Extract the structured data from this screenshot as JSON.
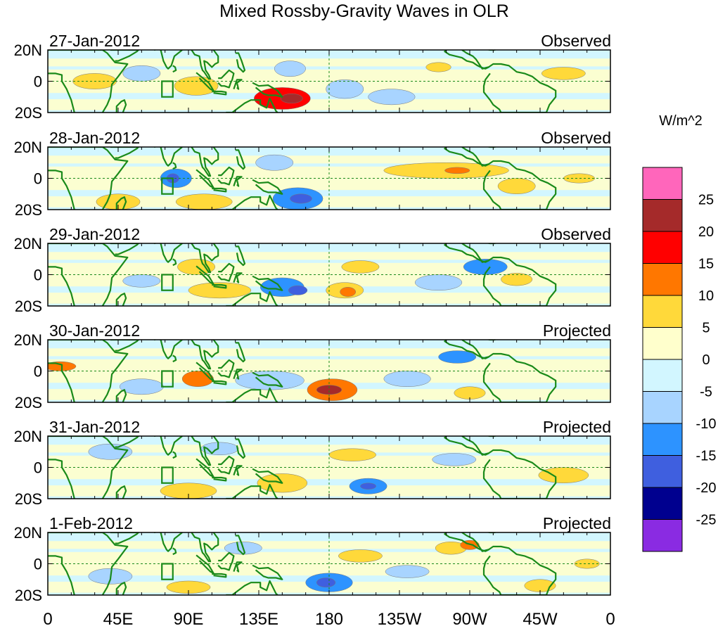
{
  "title": "Mixed Rossby-Gravity Waves in OLR",
  "units": "W/m^2",
  "lat_labels": [
    "20N",
    "0",
    "20S"
  ],
  "lon_labels": [
    "0",
    "45E",
    "90E",
    "135E",
    "180",
    "135W",
    "90W",
    "45W",
    "0"
  ],
  "panels": [
    {
      "date": "27-Jan-2012",
      "status": "Observed"
    },
    {
      "date": "28-Jan-2012",
      "status": "Observed"
    },
    {
      "date": "29-Jan-2012",
      "status": "Observed"
    },
    {
      "date": "30-Jan-2012",
      "status": "Projected"
    },
    {
      "date": "31-Jan-2012",
      "status": "Projected"
    },
    {
      "date": "1-Feb-2012",
      "status": "Projected"
    }
  ],
  "colorbar": {
    "labels": [
      "25",
      "20",
      "15",
      "10",
      "5",
      "0",
      "-5",
      "-10",
      "-15",
      "-20",
      "-25"
    ],
    "colors": [
      "#ff66bb",
      "#a52a2a",
      "#ff0000",
      "#ff7700",
      "#ffd93a",
      "#ffffcc",
      "#d2f6ff",
      "#a8d4ff",
      "#2d93ff",
      "#3f5fdf",
      "#00008f",
      "#8a2be2"
    ]
  },
  "blobs": [
    [
      {
        "lon": 30,
        "lat": 0,
        "rx": 14,
        "ry": 5,
        "v": 5
      },
      {
        "lon": 150,
        "lat": -11,
        "rx": 18,
        "ry": 7,
        "v": 15
      },
      {
        "lon": 156,
        "lat": -11,
        "rx": 7,
        "ry": 3,
        "v": 20
      },
      {
        "lon": 190,
        "lat": -5,
        "rx": 12,
        "ry": 6,
        "v": -5
      },
      {
        "lon": 155,
        "lat": 8,
        "rx": 10,
        "ry": 5,
        "v": -5
      },
      {
        "lon": 95,
        "lat": -3,
        "rx": 14,
        "ry": 6,
        "v": 5
      },
      {
        "lon": 250,
        "lat": 9,
        "rx": 8,
        "ry": 3,
        "v": 5
      },
      {
        "lon": 330,
        "lat": 5,
        "rx": 14,
        "ry": 4,
        "v": 5
      },
      {
        "lon": 60,
        "lat": 5,
        "rx": 12,
        "ry": 5,
        "v": -5
      },
      {
        "lon": 220,
        "lat": -10,
        "rx": 15,
        "ry": 5,
        "v": -5
      }
    ],
    [
      {
        "lon": 160,
        "lat": -13,
        "rx": 16,
        "ry": 7,
        "v": -10
      },
      {
        "lon": 162,
        "lat": -13,
        "rx": 7,
        "ry": 3,
        "v": -15
      },
      {
        "lon": 255,
        "lat": 5,
        "rx": 40,
        "ry": 5,
        "v": 5
      },
      {
        "lon": 262,
        "lat": 5,
        "rx": 8,
        "ry": 2,
        "v": 10
      },
      {
        "lon": 82,
        "lat": 0,
        "rx": 10,
        "ry": 6,
        "v": -10
      },
      {
        "lon": 80,
        "lat": 0,
        "rx": 4,
        "ry": 3,
        "v": -15
      },
      {
        "lon": 45,
        "lat": -15,
        "rx": 14,
        "ry": 5,
        "v": 5
      },
      {
        "lon": 100,
        "lat": -15,
        "rx": 18,
        "ry": 5,
        "v": 5
      },
      {
        "lon": 145,
        "lat": 10,
        "rx": 12,
        "ry": 5,
        "v": -5
      },
      {
        "lon": 300,
        "lat": -5,
        "rx": 12,
        "ry": 5,
        "v": 5
      },
      {
        "lon": 340,
        "lat": 0,
        "rx": 10,
        "ry": 3,
        "v": 5
      }
    ],
    [
      {
        "lon": 150,
        "lat": -8,
        "rx": 14,
        "ry": 6,
        "v": -10
      },
      {
        "lon": 160,
        "lat": -10,
        "rx": 6,
        "ry": 3,
        "v": -15
      },
      {
        "lon": 190,
        "lat": -10,
        "rx": 12,
        "ry": 5,
        "v": 5
      },
      {
        "lon": 192,
        "lat": -11,
        "rx": 5,
        "ry": 3,
        "v": 10
      },
      {
        "lon": 280,
        "lat": 5,
        "rx": 14,
        "ry": 5,
        "v": -10
      },
      {
        "lon": 110,
        "lat": -10,
        "rx": 20,
        "ry": 5,
        "v": 5
      },
      {
        "lon": 95,
        "lat": 5,
        "rx": 12,
        "ry": 5,
        "v": 5
      },
      {
        "lon": 200,
        "lat": 5,
        "rx": 12,
        "ry": 4,
        "v": 5
      },
      {
        "lon": 60,
        "lat": -4,
        "rx": 12,
        "ry": 4,
        "v": -5
      },
      {
        "lon": 250,
        "lat": -5,
        "rx": 15,
        "ry": 5,
        "v": -5
      },
      {
        "lon": 300,
        "lat": -3,
        "rx": 10,
        "ry": 4,
        "v": 5
      }
    ],
    [
      {
        "lon": 182,
        "lat": -12,
        "rx": 16,
        "ry": 7,
        "v": 10
      },
      {
        "lon": 180,
        "lat": -12,
        "rx": 8,
        "ry": 3,
        "v": 20
      },
      {
        "lon": 142,
        "lat": -6,
        "rx": 22,
        "ry": 6,
        "v": -5
      },
      {
        "lon": 262,
        "lat": 9,
        "rx": 12,
        "ry": 4,
        "v": -10
      },
      {
        "lon": 96,
        "lat": -5,
        "rx": 10,
        "ry": 5,
        "v": 10
      },
      {
        "lon": 8,
        "lat": 3,
        "rx": 10,
        "ry": 3,
        "v": 10
      },
      {
        "lon": 270,
        "lat": -14,
        "rx": 10,
        "ry": 4,
        "v": 5
      },
      {
        "lon": 230,
        "lat": -5,
        "rx": 15,
        "ry": 5,
        "v": -5
      },
      {
        "lon": 60,
        "lat": -10,
        "rx": 14,
        "ry": 5,
        "v": -5
      }
    ],
    [
      {
        "lon": 205,
        "lat": -12,
        "rx": 12,
        "ry": 5,
        "v": -10
      },
      {
        "lon": 205,
        "lat": -12,
        "rx": 5,
        "ry": 2,
        "v": -15
      },
      {
        "lon": 150,
        "lat": -10,
        "rx": 16,
        "ry": 6,
        "v": 5
      },
      {
        "lon": 195,
        "lat": 8,
        "rx": 15,
        "ry": 4,
        "v": 5
      },
      {
        "lon": 90,
        "lat": -15,
        "rx": 18,
        "ry": 5,
        "v": 5
      },
      {
        "lon": 260,
        "lat": 5,
        "rx": 14,
        "ry": 4,
        "v": -5
      },
      {
        "lon": 40,
        "lat": 10,
        "rx": 14,
        "ry": 5,
        "v": -5
      },
      {
        "lon": 330,
        "lat": -5,
        "rx": 16,
        "ry": 5,
        "v": 5
      },
      {
        "lon": 110,
        "lat": 12,
        "rx": 12,
        "ry": 4,
        "v": -5
      }
    ],
    [
      {
        "lon": 180,
        "lat": -12,
        "rx": 15,
        "ry": 6,
        "v": -10
      },
      {
        "lon": 178,
        "lat": -12,
        "rx": 6,
        "ry": 3,
        "v": -15
      },
      {
        "lon": 258,
        "lat": 10,
        "rx": 10,
        "ry": 4,
        "v": 5
      },
      {
        "lon": 270,
        "lat": 12,
        "rx": 6,
        "ry": 3,
        "v": 10
      },
      {
        "lon": 90,
        "lat": -15,
        "rx": 14,
        "ry": 4,
        "v": 5
      },
      {
        "lon": 200,
        "lat": 5,
        "rx": 14,
        "ry": 4,
        "v": 5
      },
      {
        "lon": 125,
        "lat": 10,
        "rx": 12,
        "ry": 4,
        "v": -5
      },
      {
        "lon": 40,
        "lat": -8,
        "rx": 14,
        "ry": 5,
        "v": -5
      },
      {
        "lon": 315,
        "lat": -14,
        "rx": 10,
        "ry": 4,
        "v": 5
      },
      {
        "lon": 345,
        "lat": 0,
        "rx": 8,
        "ry": 3,
        "v": 5
      },
      {
        "lon": 230,
        "lat": -5,
        "rx": 14,
        "ry": 4,
        "v": -5
      }
    ]
  ]
}
